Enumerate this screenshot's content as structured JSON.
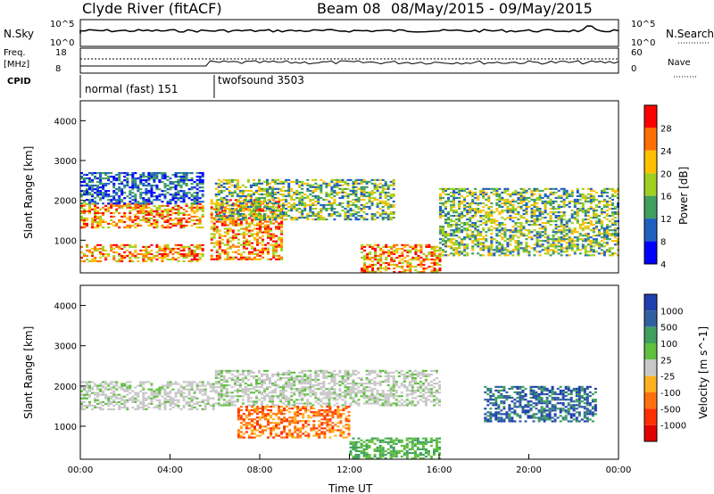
{
  "header": {
    "title": "Clyde River (fitACF)",
    "beam": "Beam 08",
    "date_range": "08/May/2015 - 09/May/2015"
  },
  "param_panels": {
    "nsky_label": "N.Sky",
    "nsky_ticks": [
      "10^5",
      "10^0"
    ],
    "nsearch_label": "N.Search",
    "nsearch_ticks": [
      "10^5",
      "10^0"
    ],
    "freq_label": "Freq.",
    "freq_unit": "[MHz]",
    "freq_ticks": [
      "18",
      "8"
    ],
    "nave_label": "Nave",
    "nave_ticks": [
      "60",
      "0"
    ],
    "cpid_label": "CPID",
    "cpid_modes": [
      {
        "name": "normal (fast) 151",
        "start_hour": 0,
        "end_hour": 5.6
      },
      {
        "name": "twofsound 3503",
        "start_hour": 5.8,
        "end_hour": 24
      }
    ]
  },
  "chart_data": [
    {
      "type": "heatmap",
      "title": "",
      "ylabel": "Slant Range [km]",
      "xlabel": "",
      "xlim": [
        0,
        24
      ],
      "ylim": [
        180,
        4500
      ],
      "yticks": [
        "4000",
        "3000",
        "2000",
        "1000"
      ],
      "colorbar": {
        "label": "Power [dB]",
        "ticks": [
          "28",
          "24",
          "20",
          "16",
          "12",
          "8",
          "4"
        ],
        "colors": [
          "#ff0000",
          "#ff7000",
          "#ffc000",
          "#a0d020",
          "#40a060",
          "#2060c0",
          "#0000ff"
        ]
      },
      "regions": [
        {
          "x": [
            0,
            5.5
          ],
          "y": [
            450,
            900
          ],
          "level": "high"
        },
        {
          "x": [
            0,
            5.5
          ],
          "y": [
            1300,
            1900
          ],
          "level": "high"
        },
        {
          "x": [
            0,
            5.5
          ],
          "y": [
            1900,
            2700
          ],
          "level": "low"
        },
        {
          "x": [
            5.8,
            9
          ],
          "y": [
            500,
            2000
          ],
          "level": "high"
        },
        {
          "x": [
            6,
            14
          ],
          "y": [
            1500,
            2500
          ],
          "level": "mid"
        },
        {
          "x": [
            12.5,
            16
          ],
          "y": [
            180,
            900
          ],
          "level": "high"
        },
        {
          "x": [
            16,
            24
          ],
          "y": [
            600,
            2300
          ],
          "level": "mid"
        }
      ]
    },
    {
      "type": "heatmap",
      "title": "",
      "ylabel": "Slant Range [km]",
      "xlabel": "Time UT",
      "xlim": [
        0,
        24
      ],
      "ylim": [
        180,
        4500
      ],
      "xticks": [
        "00:00",
        "04:00",
        "08:00",
        "12:00",
        "16:00",
        "20:00",
        "00:00"
      ],
      "yticks": [
        "4000",
        "3000",
        "2000",
        "1000"
      ],
      "colorbar": {
        "label": "Velocity [m s^-1]",
        "ticks": [
          "1000",
          "500",
          "100",
          "25",
          "-25",
          "-100",
          "-500",
          "-1000"
        ],
        "colors": [
          "#2040b0",
          "#3060a0",
          "#40a060",
          "#60c040",
          "#c8c8c8",
          "#ffb020",
          "#ff7010",
          "#ff3000",
          "#e00000"
        ]
      },
      "regions": [
        {
          "x": [
            0,
            6
          ],
          "y": [
            1400,
            2100
          ],
          "level": "ground"
        },
        {
          "x": [
            6,
            16
          ],
          "y": [
            1500,
            2400
          ],
          "level": "ground"
        },
        {
          "x": [
            12,
            16
          ],
          "y": [
            180,
            700
          ],
          "level": "positive"
        },
        {
          "x": [
            18,
            23
          ],
          "y": [
            1100,
            2000
          ],
          "level": "strong-positive"
        },
        {
          "x": [
            7,
            12
          ],
          "y": [
            700,
            1500
          ],
          "level": "negative"
        }
      ]
    }
  ]
}
